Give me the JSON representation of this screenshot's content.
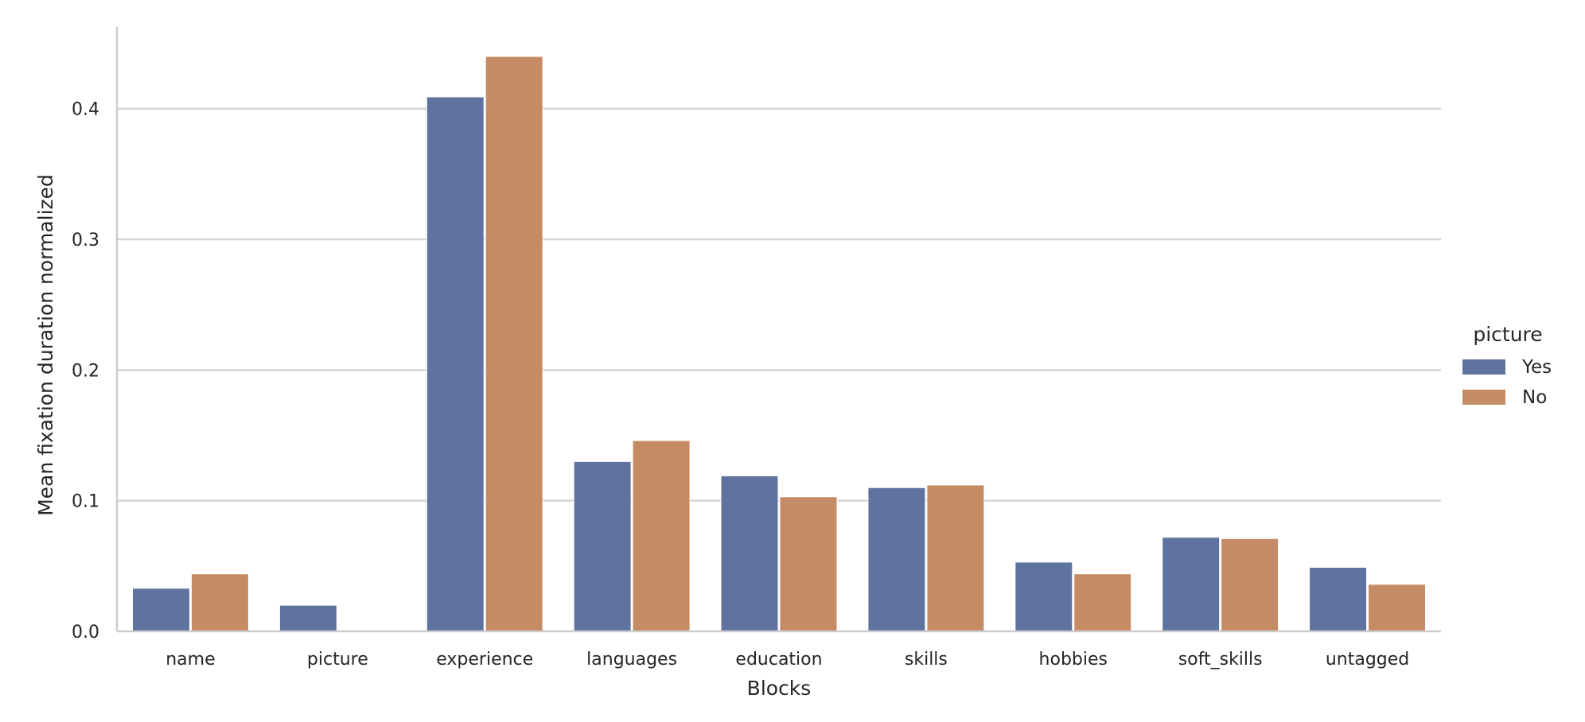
{
  "chart_data": {
    "type": "bar",
    "title": "",
    "xlabel": "Blocks",
    "ylabel": "Mean fixation duration normalized",
    "categories": [
      "name",
      "picture",
      "experience",
      "languages",
      "education",
      "skills",
      "hobbies",
      "soft_skills",
      "untagged"
    ],
    "series": [
      {
        "name": "Yes",
        "color": "#5f73a1",
        "values": [
          0.033,
          0.02,
          0.409,
          0.13,
          0.119,
          0.11,
          0.053,
          0.072,
          0.049
        ]
      },
      {
        "name": "No",
        "color": "#c58b64",
        "values": [
          0.044,
          0.0,
          0.44,
          0.146,
          0.103,
          0.112,
          0.044,
          0.071,
          0.036
        ]
      }
    ],
    "ylim": [
      0.0,
      0.4625
    ],
    "yticks": [
      0.0,
      0.1,
      0.2,
      0.3,
      0.4
    ],
    "ytick_labels": [
      "0.0",
      "0.1",
      "0.2",
      "0.3",
      "0.4"
    ],
    "grid": "horizontal",
    "legend": {
      "title": "picture",
      "placement": "right"
    }
  }
}
